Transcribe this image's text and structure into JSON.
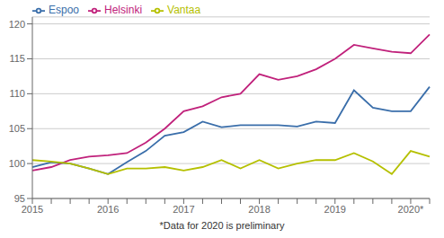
{
  "chart_data": {
    "type": "line",
    "annotations": [
      "*Data for 2020 is preliminary"
    ],
    "categories": [
      "2015",
      null,
      null,
      null,
      "2016",
      null,
      null,
      null,
      "2017",
      null,
      null,
      null,
      "2018",
      null,
      null,
      null,
      "2019",
      null,
      null,
      null,
      "2020*",
      null
    ],
    "series": [
      {
        "name": "Helsinki",
        "color": "#c0217b",
        "values": [
          99.0,
          99.5,
          100.5,
          101.0,
          101.2,
          101.5,
          103.0,
          105.0,
          107.5,
          108.2,
          109.5,
          110.0,
          112.8,
          112.0,
          112.5,
          113.5,
          115.0,
          117.0,
          116.5,
          116.0,
          115.8,
          118.5
        ]
      },
      {
        "name": "Espoo",
        "color": "#3a6eaa",
        "values": [
          99.5,
          100.2,
          100.0,
          99.3,
          98.5,
          100.2,
          101.8,
          104.0,
          104.5,
          106.0,
          105.2,
          105.5,
          105.5,
          105.5,
          105.3,
          106.0,
          105.8,
          110.5,
          108.0,
          107.5,
          107.5,
          111.0
        ]
      },
      {
        "name": "Vantaa",
        "color": "#b5c000",
        "values": [
          100.5,
          100.3,
          100.0,
          99.3,
          98.5,
          99.3,
          99.3,
          99.5,
          99.0,
          99.5,
          100.5,
          99.3,
          100.5,
          99.3,
          100.0,
          100.5,
          100.5,
          101.5,
          100.3,
          98.5,
          101.8,
          101.0
        ]
      }
    ],
    "ylim": [
      95,
      121
    ],
    "yticks": [
      95,
      100,
      105,
      110,
      115,
      120
    ],
    "grid": true,
    "legend": "upper left"
  }
}
